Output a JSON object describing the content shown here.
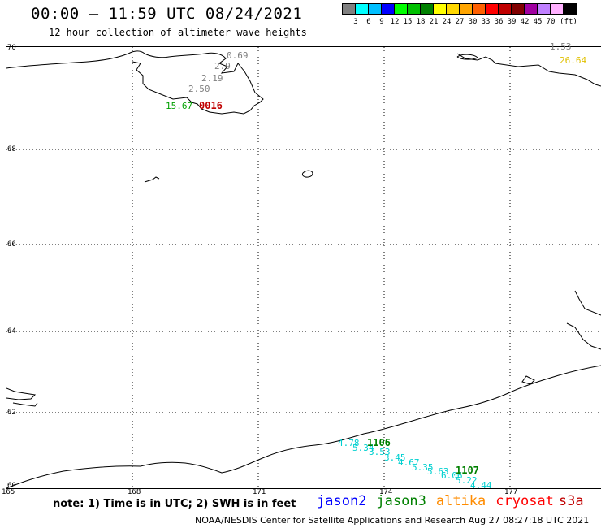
{
  "header": {
    "title": "00:00 – 11:59 UTC 08/24/2021",
    "subtitle": "12 hour collection of altimeter wave heights"
  },
  "legend": {
    "colors": [
      "#808080",
      "#00ffff",
      "#00bfff",
      "#0000ff",
      "#00ff00",
      "#00c000",
      "#008000",
      "#ffff00",
      "#ffd700",
      "#ffa500",
      "#ff6000",
      "#ff0000",
      "#c00000",
      "#800000",
      "#a000a0",
      "#c080ff",
      "#ffb0ff",
      "#000000"
    ],
    "ticks": [
      "3",
      "6",
      "9",
      "12",
      "15",
      "18",
      "21",
      "24",
      "27",
      "30",
      "33",
      "36",
      "39",
      "42",
      "45",
      "70",
      "(ft)"
    ]
  },
  "map": {
    "lat_labels": [
      "70",
      "68",
      "66",
      "64",
      "62",
      "60"
    ],
    "lon_labels": [
      "165",
      "168",
      "171",
      "174",
      "177"
    ],
    "swh_labels": [
      {
        "text": "0.69",
        "color": "#808080"
      },
      {
        "text": "2.9",
        "color": "#808080"
      },
      {
        "text": "2.19",
        "color": "#808080"
      },
      {
        "text": "2.50",
        "color": "#808080"
      },
      {
        "text": "15.67",
        "color": "#00a000"
      },
      {
        "text": "1.53",
        "color": "#808080"
      },
      {
        "text": "26.64",
        "color": "#e0c000"
      },
      {
        "text": "4.78",
        "color": "#00d0d0"
      },
      {
        "text": "5.34",
        "color": "#00d0d0"
      },
      {
        "text": "3.53",
        "color": "#00d0d0"
      },
      {
        "text": "3.45",
        "color": "#00d0d0"
      },
      {
        "text": "4.67",
        "color": "#00d0d0"
      },
      {
        "text": "5.35",
        "color": "#00d0d0"
      },
      {
        "text": "5.63",
        "color": "#00d0d0"
      },
      {
        "text": "6.06",
        "color": "#00d0d0"
      },
      {
        "text": "5.22",
        "color": "#00d0d0"
      },
      {
        "text": "4.44",
        "color": "#00d0d0"
      }
    ],
    "pass_times": [
      {
        "text": "0016",
        "color": "#c00000"
      },
      {
        "text": "1106",
        "color": "#008000"
      },
      {
        "text": "1107",
        "color": "#008000"
      }
    ]
  },
  "footer": {
    "note": "note:  1) Time is in UTC;  2) SWH is in feet",
    "satellites": [
      {
        "name": "jason2",
        "color": "#0000ff"
      },
      {
        "name": "jason3",
        "color": "#008000"
      },
      {
        "name": "altika",
        "color": "#ff8c00"
      },
      {
        "name": "cryosat",
        "color": "#ff0000"
      },
      {
        "name": "s3a",
        "color": "#c00000"
      }
    ],
    "credit": "NOAA/NESDIS Center for Satellite Applications and Research     Aug 27 08:27:18 UTC 2021"
  }
}
